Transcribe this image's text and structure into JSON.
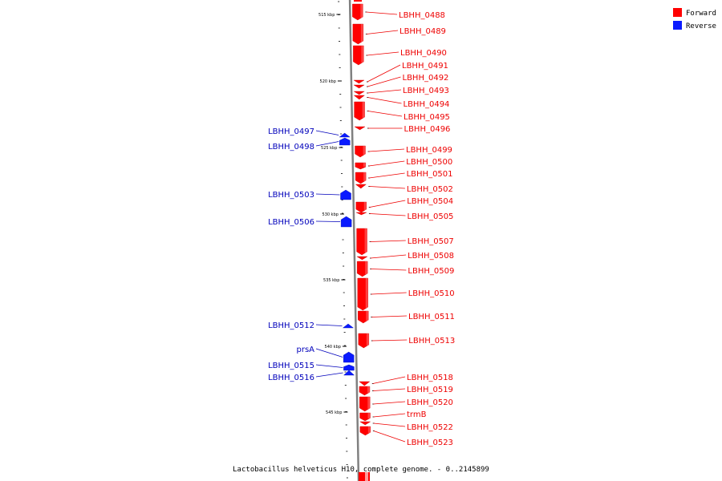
{
  "title": "Lactobacillus helveticus H10, complete genome. - 0..2145899",
  "colors": {
    "forward": "#ff0000",
    "forward_label": "#ee0000",
    "reverse": "#0a1aff",
    "reverse_label": "#0000bb",
    "backbone": "#808080"
  },
  "legend": [
    {
      "label": "Forward",
      "color": "#ff0000"
    },
    {
      "label": "Reverse",
      "color": "#0a1aff"
    }
  ],
  "ticks": [
    "515 kbp",
    "520 kbp",
    "525 kbp",
    "530 kbp",
    "535 kbp",
    "540 kbp",
    "545 kbp"
  ],
  "forward_genes": [
    "LBHH_0488",
    "LBHH_0489",
    "LBHH_0490",
    "LBHH_0491",
    "LBHH_0492",
    "LBHH_0493",
    "LBHH_0494",
    "LBHH_0495",
    "LBHH_0496",
    "LBHH_0499",
    "LBHH_0500",
    "LBHH_0501",
    "LBHH_0502",
    "LBHH_0504",
    "LBHH_0505",
    "LBHH_0507",
    "LBHH_0508",
    "LBHH_0509",
    "LBHH_0510",
    "LBHH_0511",
    "LBHH_0513",
    "LBHH_0518",
    "LBHH_0519",
    "LBHH_0520",
    "trmB",
    "LBHH_0522",
    "LBHH_0523"
  ],
  "reverse_genes": [
    "LBHH_0497",
    "LBHH_0498",
    "LBHH_0503",
    "LBHH_0506",
    "LBHH_0512",
    "prsA",
    "LBHH_0515",
    "LBHH_0516"
  ]
}
